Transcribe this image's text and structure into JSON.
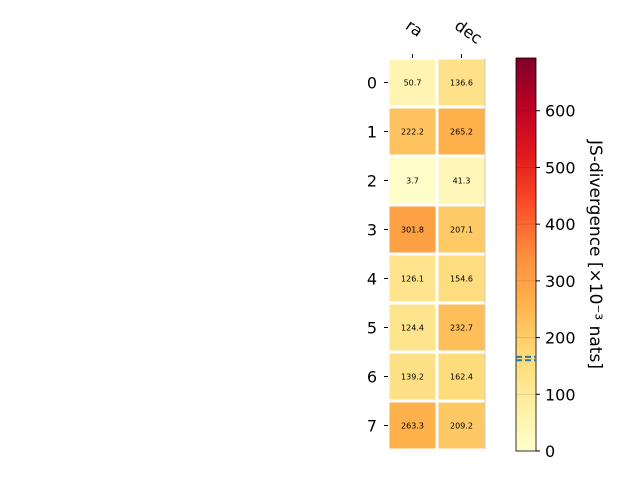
{
  "chart_data": {
    "type": "heatmap",
    "columns": [
      "ra",
      "dec"
    ],
    "rows": [
      "0",
      "1",
      "2",
      "3",
      "4",
      "5",
      "6",
      "7"
    ],
    "values": [
      [
        50.7,
        136.6
      ],
      [
        222.2,
        265.2
      ],
      [
        3.7,
        41.3
      ],
      [
        301.8,
        207.1
      ],
      [
        126.1,
        154.6
      ],
      [
        124.4,
        232.7
      ],
      [
        139.2,
        162.4
      ],
      [
        263.3,
        209.2
      ]
    ],
    "value_labels": [
      [
        "50.7",
        "136.6"
      ],
      [
        "222.2",
        "265.2"
      ],
      [
        "3.7",
        "41.3"
      ],
      [
        "301.8",
        "207.1"
      ],
      [
        "126.1",
        "154.6"
      ],
      [
        "124.4",
        "232.7"
      ],
      [
        "139.2",
        "162.4"
      ],
      [
        "263.3",
        "209.2"
      ]
    ],
    "colorbar": {
      "label": "JS-divergence [×10⁻³ nats]",
      "range": [
        0,
        693
      ],
      "ticks": [
        0,
        100,
        200,
        300,
        400,
        500,
        600
      ],
      "tick_labels": [
        "0",
        "100",
        "200",
        "300",
        "400",
        "500",
        "600"
      ],
      "colormap": "YlOrRd",
      "threshold_markers": [
        160,
        166
      ]
    }
  },
  "colors": {
    "cmap_stops": [
      "#ffffcc",
      "#ffeda0",
      "#fed976",
      "#feb24c",
      "#fd8d3c",
      "#fc4e2a",
      "#e31a1c",
      "#bd0026",
      "#800026"
    ],
    "marker": "#1f77b4",
    "cell_border": "#ffffff"
  }
}
